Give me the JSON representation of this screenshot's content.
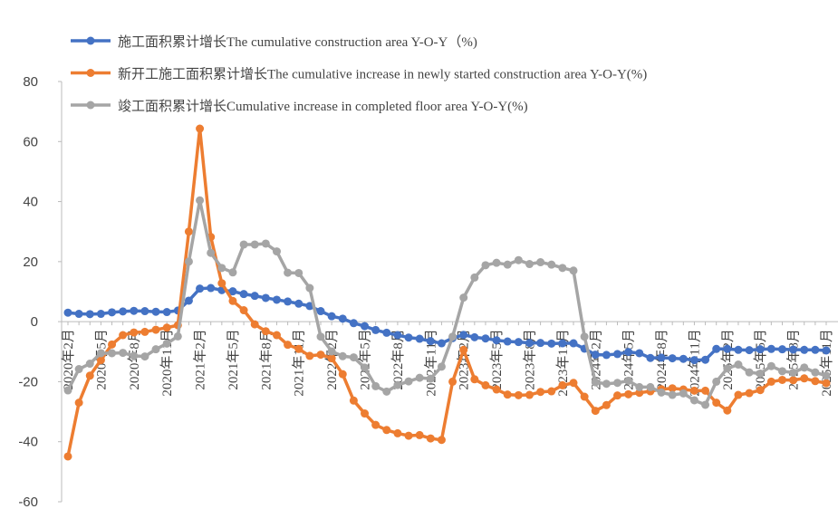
{
  "chart_data": {
    "type": "line",
    "categories": [
      "2020年2月",
      null,
      null,
      "2020年5月",
      null,
      null,
      "2020年8月",
      null,
      null,
      "2020年11月",
      null,
      null,
      "2021年2月",
      null,
      null,
      "2021年5月",
      null,
      null,
      "2021年8月",
      null,
      null,
      "2021年11月",
      null,
      null,
      "2022年2月",
      null,
      null,
      "2022年5月",
      null,
      null,
      "2022年8月",
      null,
      null,
      "2022年11月",
      null,
      null,
      "2023年2月",
      null,
      null,
      "2023年5月",
      null,
      null,
      "2023年8月",
      null,
      null,
      "2023年11月",
      null,
      null,
      "2024年2月",
      null,
      null,
      "2024年5月",
      null,
      null,
      "2024年8月",
      null,
      null,
      "2024年11月",
      null,
      null,
      "2025年2月",
      null,
      null,
      "2025年5月",
      null,
      null,
      "2025年8月",
      null,
      null,
      "2025年11月"
    ],
    "series": [
      {
        "name": "施工面积累计增长The cumulative construction area Y-O-Y（%)",
        "color": "#4472c4",
        "values": [
          3,
          2.6,
          2.5,
          2.6,
          3.1,
          3.4,
          3.6,
          3.5,
          3.3,
          3.2,
          3.7,
          7,
          11,
          11.2,
          10.5,
          10.1,
          9.2,
          8.6,
          7.9,
          7.3,
          6.7,
          6.0,
          5.2,
          3.5,
          1.8,
          1.0,
          -0.5,
          -1.5,
          -2.8,
          -3.7,
          -4.5,
          -5.3,
          -5.7,
          -6.5,
          -7.2,
          -5.5,
          -4.4,
          -5.2,
          -5.6,
          -6.2,
          -6.6,
          -6.8,
          -7.1,
          -7.1,
          -7.3,
          -7.2,
          -7.2,
          -9,
          -11,
          -11.1,
          -10.8,
          -10.1,
          -10.5,
          -12.1,
          -12,
          -12.2,
          -12.4,
          -12.8,
          -12.7,
          -9.1,
          -9.1,
          -9.4,
          -9.5,
          -9.2,
          -9.1,
          -9.2,
          -9.3,
          -9.4,
          -9.4,
          -9.6
        ]
      },
      {
        "name": "新开工施工面积累计增长The cumulative increase in newly started construction area Y-O-Y(%)",
        "color": "#ed7d31",
        "values": [
          -44.9,
          -27,
          -18,
          -12.8,
          -7.6,
          -4.5,
          -3.6,
          -3.4,
          -2.7,
          -2,
          -1.2,
          30,
          64.3,
          28.2,
          12.8,
          6.9,
          3.8,
          -0.9,
          -3.2,
          -4.5,
          -7.7,
          -9.1,
          -11.4,
          -11,
          -12.2,
          -17.5,
          -26.3,
          -30.6,
          -34.4,
          -36.1,
          -37.2,
          -38,
          -37.8,
          -38.9,
          -39.4,
          -20,
          -9.4,
          -19.2,
          -21.2,
          -22.6,
          -24.3,
          -24.5,
          -24.4,
          -23.4,
          -23.2,
          -21.2,
          -20.4,
          -25,
          -29.7,
          -27.8,
          -24.6,
          -24.2,
          -23.7,
          -23.2,
          -22.5,
          -22.2,
          -22.6,
          -23,
          -23,
          -27,
          -29.6,
          -24.4,
          -23.8,
          -22.8,
          -20,
          -19.4,
          -19.5,
          -18.9,
          -19.8,
          -20.5
        ]
      },
      {
        "name": "竣工面积累计增长Cumulative increase in completed floor area Y-O-Y(%)",
        "color": "#a5a5a5",
        "values": [
          -22.9,
          -15.8,
          -14,
          -10.5,
          -10.5,
          -10.4,
          -11.4,
          -11.6,
          -9.2,
          -7.3,
          -4.9,
          20,
          40.4,
          22.9,
          17.9,
          16.4,
          25.7,
          25.7,
          26,
          23.4,
          16.3,
          16.2,
          11.2,
          -5,
          -9.9,
          -11.5,
          -11.9,
          -15.3,
          -21.5,
          -23.3,
          -21.1,
          -19.9,
          -18.7,
          -19,
          -15,
          -5,
          8,
          14.7,
          18.8,
          19.6,
          19,
          20.5,
          19.2,
          19.8,
          19,
          17.9,
          17,
          -5,
          -20.2,
          -20.7,
          -20.4,
          -19.7,
          -21.8,
          -21.8,
          -23.6,
          -24.4,
          -23.9,
          -26.2,
          -27.7,
          -20,
          -15.6,
          -14.3,
          -16.9,
          -17.3,
          -14.8,
          -16.5,
          -17,
          -15.3,
          -16.9,
          -18
        ]
      }
    ],
    "ylim": [
      -60,
      80
    ],
    "yticks": [
      -60,
      -40,
      -20,
      0,
      20,
      40,
      60,
      80
    ],
    "grid": false,
    "legend": "top"
  }
}
